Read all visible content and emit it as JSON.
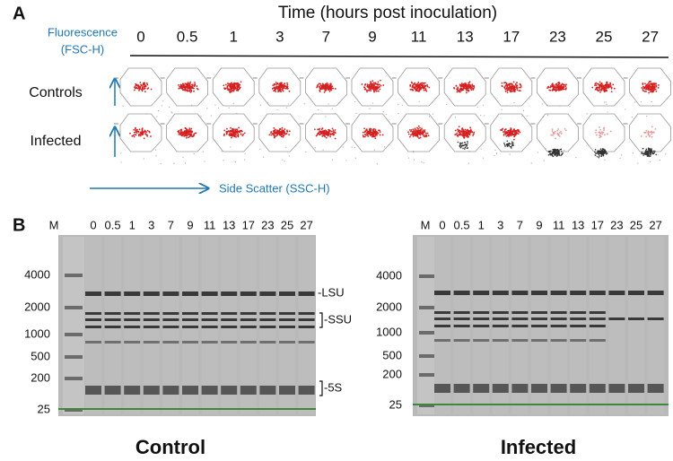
{
  "panel_a": {
    "label": "A",
    "title": "Time (hours post inoculation)",
    "timepoints": [
      "0",
      "0.5",
      "1",
      "3",
      "7",
      "9",
      "11",
      "13",
      "17",
      "23",
      "25",
      "27"
    ],
    "y_axis_label": [
      "Fluorescence",
      "(FSC-H)"
    ],
    "rows": [
      "Controls",
      "Infected"
    ],
    "x_axis_label": "Side Scatter (SSC-H)"
  },
  "panel_b": {
    "label": "B",
    "gels": [
      {
        "title": "Control",
        "marker": "M",
        "lanes": [
          "0",
          "0.5",
          "1",
          "3",
          "7",
          "9",
          "11",
          "13",
          "17",
          "23",
          "25",
          "27"
        ],
        "ladder": [
          "4000",
          "2000",
          "1000",
          "500",
          "200",
          "25"
        ],
        "bands": [
          "-LSU",
          "-SSU",
          "-5S"
        ]
      },
      {
        "title": "Infected",
        "marker": "M",
        "lanes": [
          "0",
          "0.5",
          "1",
          "3",
          "7",
          "9",
          "11",
          "13",
          "17",
          "23",
          "25",
          "27"
        ],
        "ladder": [
          "4000",
          "2000",
          "1000",
          "500",
          "200",
          "25"
        ]
      }
    ]
  }
}
